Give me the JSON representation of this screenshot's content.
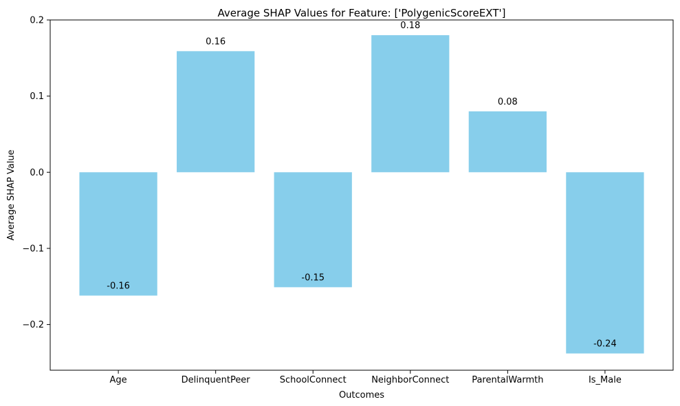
{
  "chart_data": {
    "type": "bar",
    "title": "Average SHAP Values for Feature: ['PolygenicScoreEXT']",
    "xlabel": "Outcomes",
    "ylabel": "Average SHAP Value",
    "categories": [
      "Age",
      "DelinquentPeer",
      "SchoolConnect",
      "NeighborConnect",
      "ParentalWarmth",
      "Is_Male"
    ],
    "values": [
      -0.162,
      0.159,
      -0.151,
      0.18,
      0.08,
      -0.238
    ],
    "data_labels": [
      "-0.16",
      "0.16",
      "-0.15",
      "0.18",
      "0.08",
      "-0.24"
    ],
    "ylim": [
      -0.26,
      0.2
    ],
    "yticks": [
      -0.2,
      -0.1,
      0.0,
      0.1,
      0.2
    ],
    "ytick_labels": [
      "−0.2",
      "−0.1",
      "0.0",
      "0.1",
      "0.2"
    ],
    "grid": false,
    "bar_color": "#87ceeb"
  }
}
